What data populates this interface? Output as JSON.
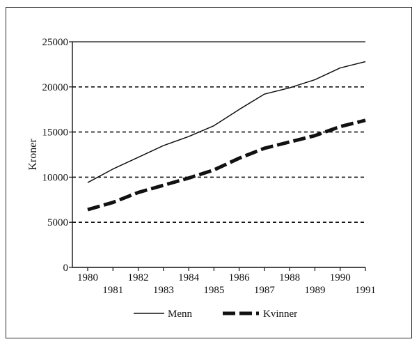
{
  "chart_data": {
    "type": "line",
    "title": "",
    "xlabel": "",
    "ylabel": "Kroner",
    "ylim": [
      0,
      25000
    ],
    "yticks": [
      0,
      5000,
      10000,
      15000,
      20000,
      25000
    ],
    "x": [
      1980,
      1981,
      1982,
      1983,
      1984,
      1985,
      1986,
      1987,
      1988,
      1989,
      1990,
      1991
    ],
    "xtick_labels": [
      "1980",
      "1981",
      "1982",
      "1983",
      "1984",
      "1985",
      "1986",
      "1987",
      "1988",
      "1989",
      "1990",
      "1991"
    ],
    "grid": "horizontal dashed lines at 5000, 10000, 15000, 20000",
    "legend_position": "bottom",
    "series": [
      {
        "name": "Menn",
        "style": "thin solid",
        "values": [
          9400,
          10900,
          12200,
          13500,
          14500,
          15700,
          17500,
          19200,
          19900,
          20800,
          22100,
          22800
        ]
      },
      {
        "name": "Kvinner",
        "style": "thick dashed",
        "values": [
          6400,
          7200,
          8300,
          9100,
          9900,
          10800,
          12100,
          13200,
          13900,
          14600,
          15600,
          16300
        ]
      }
    ]
  }
}
